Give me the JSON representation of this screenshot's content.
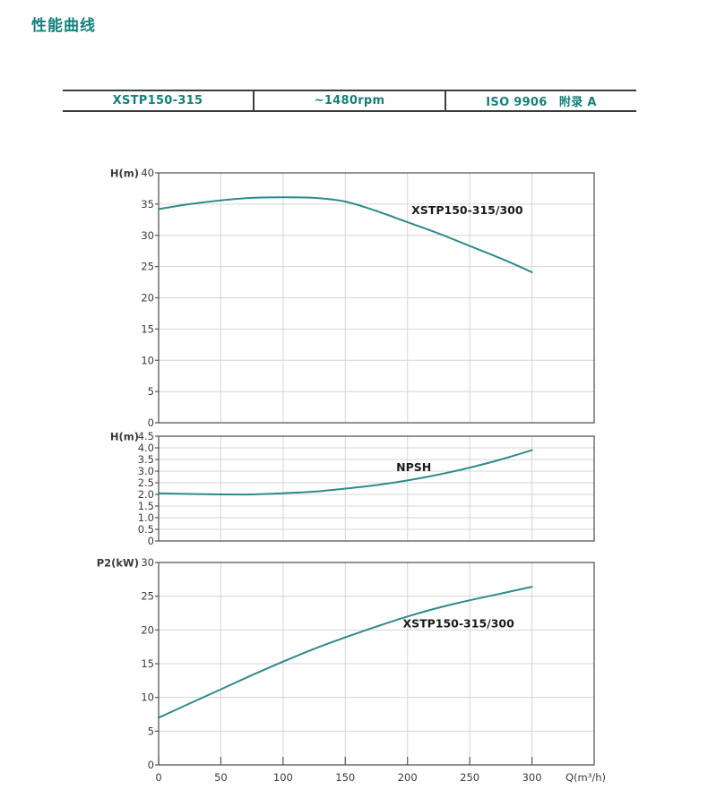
{
  "page": {
    "title": "性能曲线"
  },
  "header_table": {
    "cells": [
      {
        "label": "XSTP150-315"
      },
      {
        "label": "~1480rpm"
      },
      {
        "label": "ISO 9906　附录 A"
      }
    ]
  },
  "x_axis": {
    "label": "Q(m³/h)",
    "ticks": [
      0,
      50,
      100,
      150,
      200,
      250,
      300
    ],
    "xmax": 350
  },
  "colors": {
    "accent": "#15807b",
    "curve": "#2e8b8b",
    "grid": "#d5d5d5",
    "axis": "#58585a",
    "tick_text": "#3a3a3a",
    "annotation_text": "#1b1b1b"
  },
  "chart_data": [
    {
      "type": "line",
      "name": "head-chart",
      "axis_label": "H(m)",
      "ylim": [
        0,
        40
      ],
      "grid": true,
      "yticks": [
        {
          "v": 40,
          "label": "40"
        },
        {
          "v": 35,
          "label": "35"
        },
        {
          "v": 30,
          "label": "30"
        },
        {
          "v": 25,
          "label": "25"
        },
        {
          "v": 20,
          "label": "20"
        },
        {
          "v": 15,
          "label": "15"
        },
        {
          "v": 10,
          "label": "10"
        },
        {
          "v": 5,
          "label": "5"
        },
        {
          "v": 0,
          "label": "0"
        }
      ],
      "series": [
        {
          "name": "XSTP150-315/300",
          "x": [
            0,
            25,
            50,
            75,
            100,
            125,
            150,
            175,
            200,
            225,
            250,
            275,
            300
          ],
          "y": [
            34.2,
            35.0,
            35.6,
            36.0,
            36.1,
            36.0,
            35.4,
            33.9,
            32.1,
            30.3,
            28.3,
            26.3,
            24.1
          ]
        }
      ],
      "annotation": {
        "text": "XSTP150-315/300",
        "q": 248,
        "v": 33.4
      }
    },
    {
      "type": "line",
      "name": "npsh-chart",
      "axis_label": "H(m)",
      "ylim": [
        0,
        4.5
      ],
      "grid": true,
      "yticks": [
        {
          "v": 4.5,
          "label": "4.5"
        },
        {
          "v": 4.0,
          "label": "4.0"
        },
        {
          "v": 3.5,
          "label": "3.5"
        },
        {
          "v": 3.0,
          "label": "3.0"
        },
        {
          "v": 2.5,
          "label": "2.5"
        },
        {
          "v": 2.0,
          "label": "2.0"
        },
        {
          "v": 1.5,
          "label": "1.5"
        },
        {
          "v": 1.0,
          "label": "1.0"
        },
        {
          "v": 0.5,
          "label": "0.5"
        },
        {
          "v": 0,
          "label": "0"
        }
      ],
      "series": [
        {
          "name": "NPSH",
          "x": [
            0,
            25,
            50,
            75,
            100,
            125,
            150,
            175,
            200,
            225,
            250,
            275,
            300
          ],
          "y": [
            2.05,
            2.02,
            2.0,
            2.0,
            2.05,
            2.12,
            2.25,
            2.4,
            2.6,
            2.85,
            3.15,
            3.5,
            3.9
          ]
        }
      ],
      "annotation": {
        "text": "NPSH",
        "q": 205,
        "v": 3.0
      }
    },
    {
      "type": "line",
      "name": "power-chart",
      "axis_label": "P2(kW)",
      "ylim": [
        0,
        30
      ],
      "grid": true,
      "yticks": [
        {
          "v": 30,
          "label": "30"
        },
        {
          "v": 25,
          "label": "25"
        },
        {
          "v": 20,
          "label": "20"
        },
        {
          "v": 15,
          "label": "15"
        },
        {
          "v": 10,
          "label": "10"
        },
        {
          "v": 5,
          "label": "5"
        },
        {
          "v": 0,
          "label": "0"
        }
      ],
      "series": [
        {
          "name": "XSTP150-315/300",
          "x": [
            0,
            25,
            50,
            75,
            100,
            125,
            150,
            175,
            200,
            225,
            250,
            275,
            300
          ],
          "y": [
            7.0,
            9.1,
            11.2,
            13.3,
            15.3,
            17.2,
            18.9,
            20.5,
            22.0,
            23.3,
            24.4,
            25.4,
            26.4
          ]
        }
      ],
      "annotation": {
        "text": "XSTP150-315/300",
        "q": 241,
        "v": 20.4
      }
    }
  ]
}
